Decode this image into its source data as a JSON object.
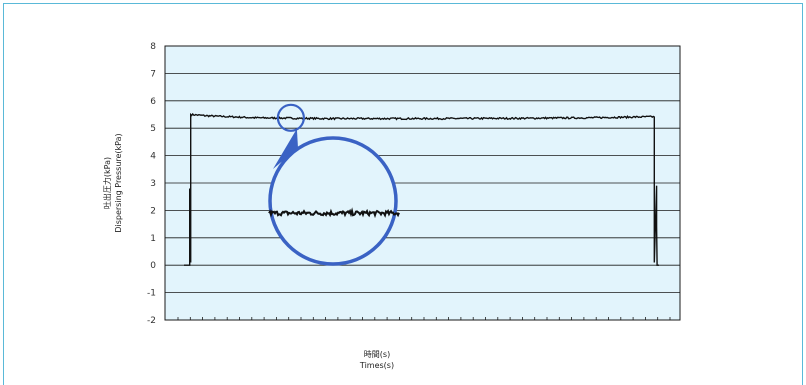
{
  "chart_data": {
    "type": "line",
    "title": "",
    "xlabel_ja": "時間(s)",
    "xlabel_en": "Times(s)",
    "ylabel_ja": "吐出圧力(kPa)",
    "ylabel_en": "Dispersing Pressure(kPa)",
    "ylim": [
      -2,
      8
    ],
    "yticks": [
      -2,
      -1,
      0,
      1,
      2,
      3,
      4,
      5,
      6,
      7,
      8
    ],
    "xlim": [
      0,
      1
    ],
    "x_minor_tick_count": 40,
    "grid": true,
    "legend": "none",
    "series": [
      {
        "points": [
          [
            0,
            0
          ],
          [
            0.01,
            0
          ],
          [
            0.012,
            0
          ],
          [
            0.012,
            2.8
          ],
          [
            0.014,
            0.1
          ],
          [
            0.014,
            5.5
          ],
          [
            0.05,
            5.45
          ],
          [
            0.15,
            5.38
          ],
          [
            0.3,
            5.35
          ],
          [
            0.5,
            5.35
          ],
          [
            0.7,
            5.36
          ],
          [
            0.85,
            5.38
          ],
          [
            0.99,
            5.42
          ],
          [
            0.99,
            0.1
          ],
          [
            0.995,
            2.9
          ],
          [
            0.995,
            1.4
          ],
          [
            0.996,
            0
          ],
          [
            1,
            0
          ]
        ],
        "noise_amplitude": 0.03
      }
    ],
    "inset": {
      "type": "magnifier",
      "center": [
        0.225,
        5.38
      ],
      "zoomed_level": 1.9,
      "zoomed_x_range": [
        0.25,
        0.6
      ],
      "noise_amplitude": 0.08
    }
  },
  "colors": {
    "plot_bg": "#e2f4fc",
    "grid": "#1a1a1a",
    "line": "#111111",
    "magnifier": "#3a62c4",
    "frame": "#5ab9d8"
  }
}
